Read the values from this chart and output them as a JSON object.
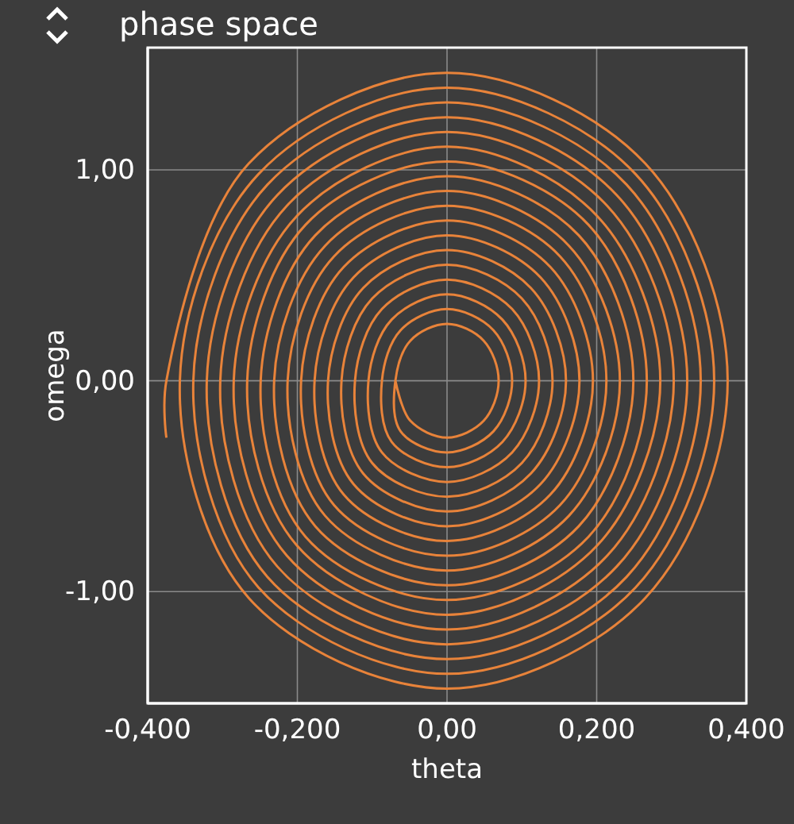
{
  "chart_data": {
    "type": "line",
    "title": "phase space",
    "xlabel": "theta",
    "ylabel": "omega",
    "xlim": [
      -0.4,
      0.4
    ],
    "ylim": [
      -1.53,
      1.58
    ],
    "xticks": [
      {
        "value": -0.4,
        "label": "-0,400"
      },
      {
        "value": -0.2,
        "label": "-0,200"
      },
      {
        "value": 0,
        "label": "0,00"
      },
      {
        "value": 0.2,
        "label": "0,200"
      },
      {
        "value": 0.4,
        "label": "0,400"
      }
    ],
    "yticks": [
      {
        "value": -1,
        "label": "-1,00"
      },
      {
        "value": 0,
        "label": "0,00"
      },
      {
        "value": 1,
        "label": "1,00"
      }
    ],
    "grid": true,
    "marker": "none",
    "line_style": "solid",
    "series": [
      {
        "color": "#e8833a",
        "x": [
          -0.375,
          -0.375,
          -0.265,
          0,
          0.265,
          0.375,
          0.265,
          0,
          -0.265,
          -0.357,
          -0.252,
          0,
          0.252,
          0.357,
          0.252,
          0,
          -0.252,
          -0.339,
          -0.24,
          0,
          0.24,
          0.339,
          0.24,
          0,
          -0.24,
          -0.321,
          -0.227,
          0,
          0.227,
          0.321,
          0.227,
          0,
          -0.227,
          -0.303,
          -0.214,
          0,
          0.214,
          0.303,
          0.214,
          0,
          -0.214,
          -0.285,
          -0.201,
          0,
          0.201,
          0.285,
          0.201,
          0,
          -0.201,
          -0.267,
          -0.189,
          0,
          0.189,
          0.267,
          0.189,
          0,
          -0.189,
          -0.249,
          -0.176,
          0,
          0.176,
          0.249,
          0.176,
          0,
          -0.176,
          -0.231,
          -0.163,
          0,
          0.163,
          0.231,
          0.163,
          0,
          -0.163,
          -0.213,
          -0.151,
          0,
          0.151,
          0.213,
          0.151,
          0,
          -0.151,
          -0.195,
          -0.138,
          0,
          0.138,
          0.195,
          0.138,
          0,
          -0.138,
          -0.177,
          -0.125,
          0,
          0.125,
          0.177,
          0.125,
          0,
          -0.125,
          -0.159,
          -0.112,
          0,
          0.112,
          0.159,
          0.112,
          0,
          -0.112,
          -0.141,
          -0.1,
          0,
          0.1,
          0.141,
          0.1,
          0,
          -0.1,
          -0.123,
          -0.087,
          0,
          0.087,
          0.123,
          0.087,
          0,
          -0.087,
          -0.105,
          -0.074,
          0,
          0.074,
          0.105,
          0.074,
          0,
          -0.074,
          -0.087,
          -0.062,
          0,
          0.062,
          0.087,
          0.062,
          0,
          -0.062,
          -0.069,
          -0.049,
          0,
          0.049,
          0.069,
          0.049,
          0,
          -0.049,
          -0.069
        ],
        "values": [
          -0.27,
          0,
          1.03,
          1.46,
          1.03,
          0,
          -1.03,
          -1.46,
          -1.03,
          0,
          0.98,
          1.39,
          0.98,
          0,
          -0.98,
          -1.39,
          -0.98,
          0,
          0.93,
          1.32,
          0.93,
          0,
          -0.93,
          -1.32,
          -0.93,
          0,
          0.88,
          1.25,
          0.88,
          0,
          -0.88,
          -1.25,
          -0.88,
          0,
          0.83,
          1.18,
          0.83,
          0,
          -0.83,
          -1.18,
          -0.83,
          0,
          0.78,
          1.11,
          0.78,
          0,
          -0.78,
          -1.11,
          -0.78,
          0,
          0.74,
          1.04,
          0.74,
          0,
          -0.74,
          -1.04,
          -0.74,
          0,
          0.69,
          0.97,
          0.69,
          0,
          -0.69,
          -0.97,
          -0.69,
          0,
          0.64,
          0.9,
          0.64,
          0,
          -0.64,
          -0.9,
          -0.64,
          0,
          0.59,
          0.83,
          0.59,
          0,
          -0.59,
          -0.83,
          -0.59,
          0,
          0.54,
          0.76,
          0.54,
          0,
          -0.54,
          -0.76,
          -0.54,
          0,
          0.49,
          0.69,
          0.49,
          0,
          -0.49,
          -0.69,
          -0.49,
          0,
          0.44,
          0.62,
          0.44,
          0,
          -0.44,
          -0.62,
          -0.44,
          0,
          0.39,
          0.55,
          0.39,
          0,
          -0.39,
          -0.55,
          -0.39,
          0,
          0.34,
          0.48,
          0.34,
          0,
          -0.34,
          -0.48,
          -0.34,
          0,
          0.29,
          0.41,
          0.29,
          0,
          -0.29,
          -0.41,
          -0.29,
          0,
          0.24,
          0.34,
          0.24,
          0,
          -0.24,
          -0.34,
          -0.24,
          0,
          0.19,
          0.27,
          0.19,
          0,
          -0.19,
          -0.27,
          -0.19,
          0
        ]
      }
    ]
  }
}
